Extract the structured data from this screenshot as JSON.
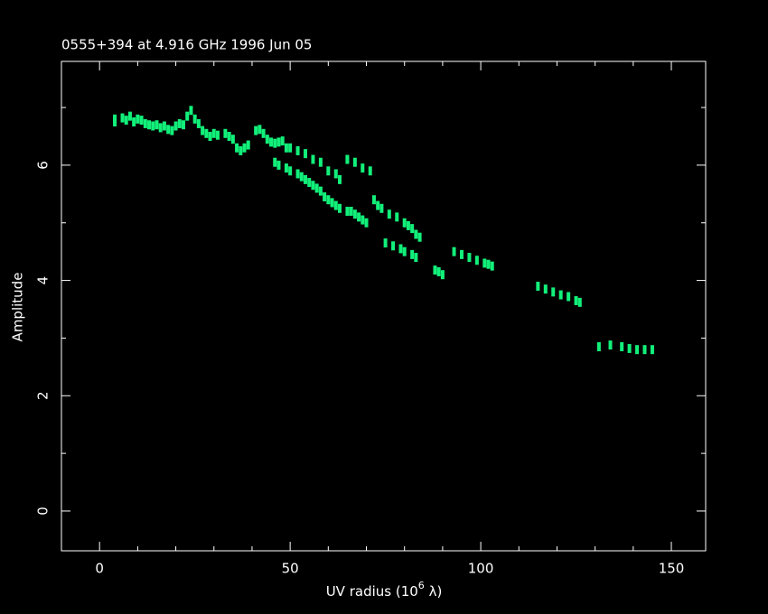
{
  "chart_data": {
    "type": "scatter",
    "title": "0555+394 at 4.916 GHz 1996 Jun 05",
    "xlabel": [
      "UV radius  (10",
      "6",
      " λ)"
    ],
    "ylabel": "Amplitude",
    "color": "#12f07a",
    "xlim": [
      -10,
      159
    ],
    "ylim": [
      -0.69,
      7.8
    ],
    "xticks": [
      0,
      50,
      100,
      150
    ],
    "yticks": [
      0,
      2,
      4,
      6
    ],
    "xminorticks": [
      -10,
      10,
      20,
      30,
      40,
      60,
      70,
      80,
      90,
      110,
      120,
      130,
      140
    ],
    "yminorticks": [
      1,
      3,
      5,
      7
    ],
    "x": [
      4,
      4,
      6,
      7,
      8,
      9,
      10,
      11,
      12,
      13,
      14,
      15,
      16,
      17,
      18,
      19,
      20,
      21,
      22,
      23,
      24,
      25,
      26,
      27,
      28,
      29,
      30,
      31,
      33,
      34,
      35,
      36,
      37,
      38,
      39,
      41,
      42,
      43,
      44,
      45,
      46,
      47,
      48,
      49,
      50,
      46,
      47,
      49,
      50,
      52,
      53,
      54,
      55,
      56,
      57,
      58,
      59,
      60,
      61,
      62,
      63,
      65,
      66,
      67,
      68,
      69,
      70,
      52,
      54,
      56,
      58,
      60,
      62,
      63,
      65,
      67,
      69,
      71,
      72,
      73,
      74,
      76,
      78,
      80,
      81,
      82,
      83,
      84,
      75,
      77,
      79,
      80,
      82,
      83,
      88,
      89,
      90,
      93,
      95,
      97,
      99,
      101,
      102,
      103,
      115,
      117,
      119,
      121,
      123,
      125,
      126,
      131,
      134,
      137,
      139,
      141,
      143,
      145
    ],
    "y": [
      6.8,
      6.75,
      6.82,
      6.78,
      6.85,
      6.75,
      6.8,
      6.78,
      6.72,
      6.7,
      6.68,
      6.7,
      6.65,
      6.68,
      6.62,
      6.6,
      6.68,
      6.72,
      6.7,
      6.85,
      6.95,
      6.8,
      6.72,
      6.6,
      6.55,
      6.5,
      6.55,
      6.52,
      6.55,
      6.5,
      6.45,
      6.3,
      6.25,
      6.3,
      6.35,
      6.6,
      6.62,
      6.55,
      6.45,
      6.4,
      6.38,
      6.4,
      6.42,
      6.3,
      6.3,
      6.05,
      6.0,
      5.95,
      5.9,
      5.85,
      5.8,
      5.75,
      5.7,
      5.65,
      5.6,
      5.55,
      5.45,
      5.4,
      5.35,
      5.3,
      5.25,
      5.2,
      5.2,
      5.15,
      5.1,
      5.05,
      5.0,
      6.25,
      6.2,
      6.1,
      6.05,
      5.9,
      5.85,
      5.75,
      6.1,
      6.05,
      5.95,
      5.9,
      5.4,
      5.3,
      5.25,
      5.15,
      5.1,
      5.0,
      4.95,
      4.9,
      4.8,
      4.75,
      4.65,
      4.6,
      4.55,
      4.5,
      4.45,
      4.4,
      4.18,
      4.15,
      4.1,
      4.5,
      4.45,
      4.4,
      4.35,
      4.3,
      4.28,
      4.25,
      3.9,
      3.85,
      3.8,
      3.75,
      3.72,
      3.65,
      3.62,
      2.85,
      2.88,
      2.85,
      2.82,
      2.8,
      2.8,
      2.8
    ]
  }
}
